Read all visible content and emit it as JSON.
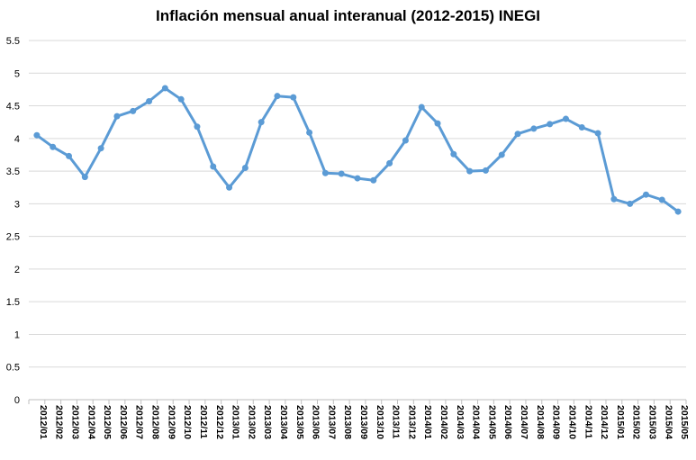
{
  "chart_data": {
    "type": "line",
    "title": "Inflación mensual anual interanual (2012-2015) INEGI",
    "xlabel": "",
    "ylabel": "",
    "ylim": [
      0,
      5.5
    ],
    "yticks": [
      "0",
      "0.5",
      "1",
      "1.5",
      "2",
      "2.5",
      "3",
      "3.5",
      "4",
      "4.5",
      "5",
      "5.5"
    ],
    "grid": true,
    "legend": "none",
    "line_color": "#5B9BD5",
    "categories": [
      "2012/01",
      "2012/02",
      "2012/03",
      "2012/04",
      "2012/05",
      "2012/06",
      "2012/07",
      "2012/08",
      "2012/09",
      "2012/10",
      "2012/11",
      "2012/12",
      "2013/01",
      "2013/02",
      "2013/03",
      "2013/04",
      "2013/05",
      "2013/06",
      "2013/07",
      "2013/08",
      "2013/09",
      "2013/10",
      "2013/11",
      "2013/12",
      "2014/01",
      "2014/02",
      "2014/03",
      "2014/04",
      "2014/05",
      "2014/06",
      "2014/07",
      "2014/08",
      "2014/09",
      "2014/10",
      "2014/11",
      "2014/12",
      "2015/01",
      "2015/02",
      "2015/03",
      "2015/04",
      "2015/05"
    ],
    "series": [
      {
        "values": [
          4.05,
          3.87,
          3.73,
          3.41,
          3.85,
          4.34,
          4.42,
          4.57,
          4.77,
          4.6,
          4.18,
          3.57,
          3.25,
          3.55,
          4.25,
          4.65,
          4.63,
          4.09,
          3.47,
          3.46,
          3.39,
          3.36,
          3.62,
          3.97,
          4.48,
          4.23,
          3.76,
          3.5,
          3.51,
          3.75,
          4.07,
          4.15,
          4.22,
          4.3,
          4.17,
          4.08,
          3.07,
          3.0,
          3.14,
          3.06,
          2.88
        ]
      }
    ]
  }
}
